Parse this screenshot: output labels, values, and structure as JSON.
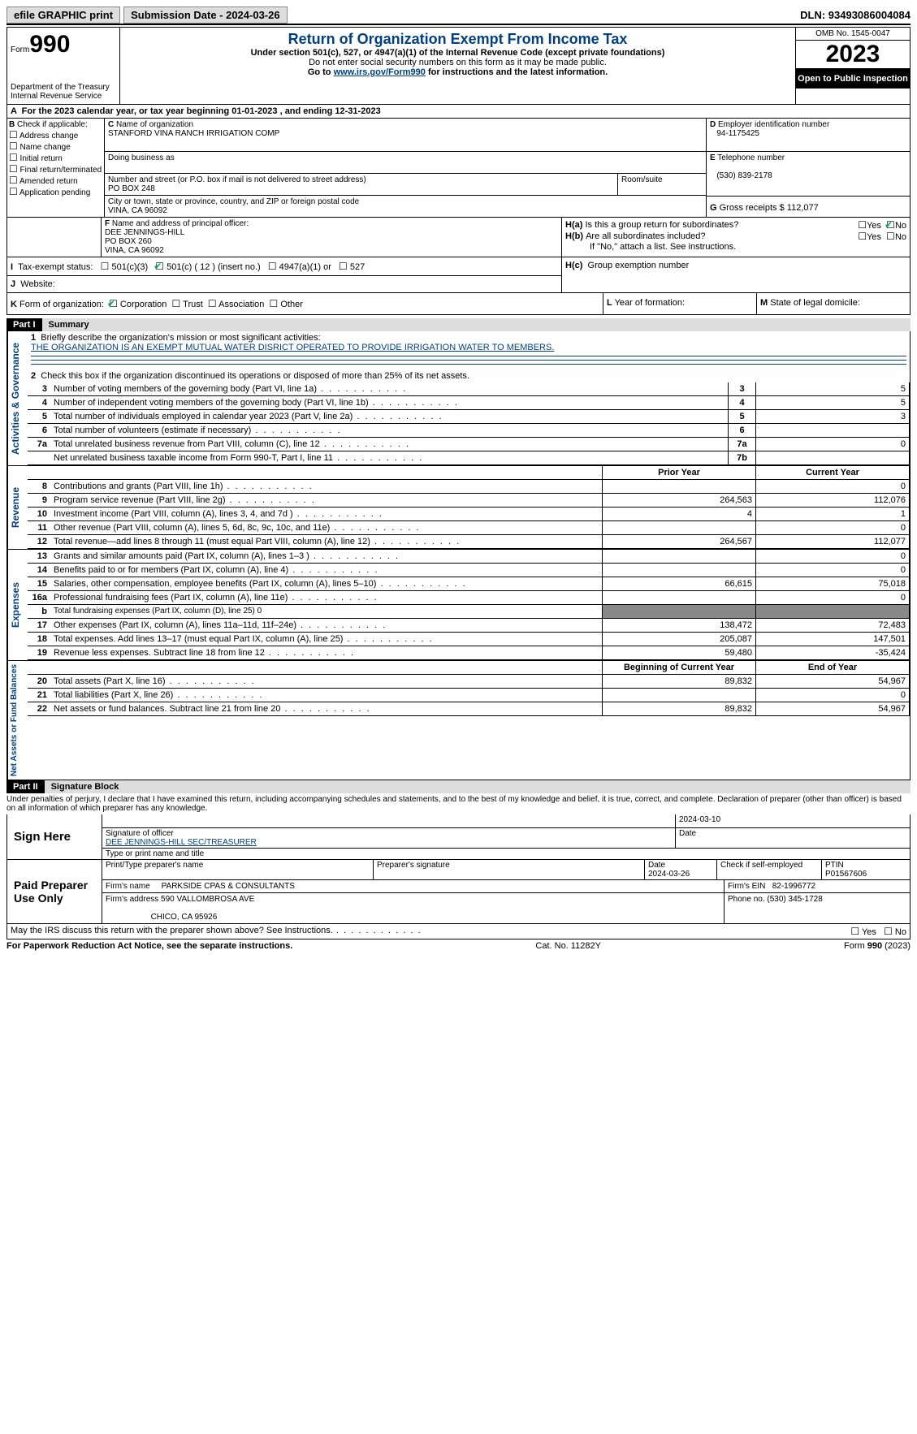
{
  "top": {
    "efile": "efile GRAPHIC print",
    "submission": "Submission Date - 2024-03-26",
    "dln": "DLN: 93493086004084"
  },
  "header": {
    "form_word": "Form",
    "form_num": "990",
    "dept1": "Department of the Treasury",
    "dept2": "Internal Revenue Service",
    "title": "Return of Organization Exempt From Income Tax",
    "sub1": "Under section 501(c), 527, or 4947(a)(1) of the Internal Revenue Code (except private foundations)",
    "sub2": "Do not enter social security numbers on this form as it may be made public.",
    "sub3_pre": "Go to ",
    "sub3_link": "www.irs.gov/Form990",
    "sub3_post": " for instructions and the latest information.",
    "omb": "OMB No. 1545-0047",
    "year": "2023",
    "open": "Open to Public Inspection"
  },
  "a": {
    "text": "For the 2023 calendar year, or tax year beginning 01-01-2023   , and ending 12-31-2023"
  },
  "b": {
    "label": "Check if applicable:",
    "items": [
      "Address change",
      "Name change",
      "Initial return",
      "Final return/terminated",
      "Amended return",
      "Application pending"
    ]
  },
  "c": {
    "name_label": "Name of organization",
    "name": "STANFORD VINA RANCH IRRIGATION COMP",
    "dba_label": "Doing business as",
    "street_label": "Number and street (or P.O. box if mail is not delivered to street address)",
    "street": "PO BOX 248",
    "room_label": "Room/suite",
    "city_label": "City or town, state or province, country, and ZIP or foreign postal code",
    "city": "VINA, CA  96092"
  },
  "d": {
    "label": "Employer identification number",
    "val": "94-1175425"
  },
  "e": {
    "label": "Telephone number",
    "val": "(530) 839-2178"
  },
  "g": {
    "label": "Gross receipts $",
    "val": "112,077"
  },
  "f": {
    "label": "Name and address of principal officer:",
    "l1": "DEE JENNINGS-HILL",
    "l2": "PO BOX 260",
    "l3": "VINA, CA  96092"
  },
  "h": {
    "a_q": "Is this a group return for subordinates?",
    "b_q": "Are all subordinates included?",
    "no_note": "If \"No,\" attach a list. See instructions.",
    "c_q": "Group exemption number"
  },
  "i": {
    "label": "Tax-exempt status:",
    "o1": "501(c)(3)",
    "o2": "501(c) ( 12 ) (insert no.)",
    "o3": "4947(a)(1) or",
    "o4": "527"
  },
  "j": {
    "label": "Website:"
  },
  "k": {
    "label": "Form of organization:",
    "o1": "Corporation",
    "o2": "Trust",
    "o3": "Association",
    "o4": "Other"
  },
  "l": {
    "label": "Year of formation:"
  },
  "m": {
    "label": "State of legal domicile:"
  },
  "part1": {
    "header": "Part I",
    "title": "Summary",
    "line1_label": "Briefly describe the organization's mission or most significant activities:",
    "line1_val": "THE ORGANIZATION IS AN EXEMPT MUTUAL WATER DISRICT OPERATED TO PROVIDE IRRIGATION WATER TO MEMBERS.",
    "line2": "Check this box      if the organization discontinued its operations or disposed of more than 25% of its net assets.",
    "gov_label": "Activities & Governance",
    "rev_label": "Revenue",
    "exp_label": "Expenses",
    "net_label": "Net Assets or Fund Balances",
    "prior": "Prior Year",
    "current": "Current Year",
    "begin": "Beginning of Current Year",
    "end": "End of Year",
    "rows_gov": [
      {
        "n": "3",
        "d": "Number of voting members of the governing body (Part VI, line 1a)",
        "i": "3",
        "v": "5"
      },
      {
        "n": "4",
        "d": "Number of independent voting members of the governing body (Part VI, line 1b)",
        "i": "4",
        "v": "5"
      },
      {
        "n": "5",
        "d": "Total number of individuals employed in calendar year 2023 (Part V, line 2a)",
        "i": "5",
        "v": "3"
      },
      {
        "n": "6",
        "d": "Total number of volunteers (estimate if necessary)",
        "i": "6",
        "v": ""
      },
      {
        "n": "7a",
        "d": "Total unrelated business revenue from Part VIII, column (C), line 12",
        "i": "7a",
        "v": "0"
      },
      {
        "n": "",
        "d": "Net unrelated business taxable income from Form 990-T, Part I, line 11",
        "i": "7b",
        "v": ""
      }
    ],
    "rows_rev": [
      {
        "n": "8",
        "d": "Contributions and grants (Part VIII, line 1h)",
        "p": "",
        "c": "0"
      },
      {
        "n": "9",
        "d": "Program service revenue (Part VIII, line 2g)",
        "p": "264,563",
        "c": "112,076"
      },
      {
        "n": "10",
        "d": "Investment income (Part VIII, column (A), lines 3, 4, and 7d )",
        "p": "4",
        "c": "1"
      },
      {
        "n": "11",
        "d": "Other revenue (Part VIII, column (A), lines 5, 6d, 8c, 9c, 10c, and 11e)",
        "p": "",
        "c": "0"
      },
      {
        "n": "12",
        "d": "Total revenue—add lines 8 through 11 (must equal Part VIII, column (A), line 12)",
        "p": "264,567",
        "c": "112,077"
      }
    ],
    "rows_exp": [
      {
        "n": "13",
        "d": "Grants and similar amounts paid (Part IX, column (A), lines 1–3 )",
        "p": "",
        "c": "0"
      },
      {
        "n": "14",
        "d": "Benefits paid to or for members (Part IX, column (A), line 4)",
        "p": "",
        "c": "0"
      },
      {
        "n": "15",
        "d": "Salaries, other compensation, employee benefits (Part IX, column (A), lines 5–10)",
        "p": "66,615",
        "c": "75,018"
      },
      {
        "n": "16a",
        "d": "Professional fundraising fees (Part IX, column (A), line 11e)",
        "p": "",
        "c": "0"
      },
      {
        "n": "b",
        "d": "Total fundraising expenses (Part IX, column (D), line 25) 0",
        "grey": true
      },
      {
        "n": "17",
        "d": "Other expenses (Part IX, column (A), lines 11a–11d, 11f–24e)",
        "p": "138,472",
        "c": "72,483"
      },
      {
        "n": "18",
        "d": "Total expenses. Add lines 13–17 (must equal Part IX, column (A), line 25)",
        "p": "205,087",
        "c": "147,501"
      },
      {
        "n": "19",
        "d": "Revenue less expenses. Subtract line 18 from line 12",
        "p": "59,480",
        "c": "-35,424"
      }
    ],
    "rows_net": [
      {
        "n": "20",
        "d": "Total assets (Part X, line 16)",
        "p": "89,832",
        "c": "54,967"
      },
      {
        "n": "21",
        "d": "Total liabilities (Part X, line 26)",
        "p": "",
        "c": "0"
      },
      {
        "n": "22",
        "d": "Net assets or fund balances. Subtract line 21 from line 20",
        "p": "89,832",
        "c": "54,967"
      }
    ]
  },
  "part2": {
    "header": "Part II",
    "title": "Signature Block",
    "perjury": "Under penalties of perjury, I declare that I have examined this return, including accompanying schedules and statements, and to the best of my knowledge and belief, it is true, correct, and complete. Declaration of preparer (other than officer) is based on all information of which preparer has any knowledge.",
    "sign_here": "Sign Here",
    "sig_date": "2024-03-10",
    "sig_label": "Signature of officer",
    "date_label": "Date",
    "officer": "DEE JENNINGS-HILL  SEC/TREASURER",
    "officer_label": "Type or print name and title",
    "paid": "Paid Preparer Use Only",
    "prep_name_label": "Print/Type preparer's name",
    "prep_sig_label": "Preparer's signature",
    "prep_date_label": "Date",
    "prep_date": "2024-03-26",
    "check_self": "Check       if self-employed",
    "ptin_label": "PTIN",
    "ptin": "P01567606",
    "firm_name_label": "Firm's name",
    "firm_name": "PARKSIDE CPAS & CONSULTANTS",
    "firm_ein_label": "Firm's EIN",
    "firm_ein": "82-1996772",
    "firm_addr_label": "Firm's address",
    "firm_addr1": "590 VALLOMBROSA AVE",
    "firm_addr2": "CHICO, CA  95926",
    "phone_label": "Phone no.",
    "phone": "(530) 345-1728",
    "discuss": "May the IRS discuss this return with the preparer shown above? See Instructions."
  },
  "footer": {
    "l": "For Paperwork Reduction Act Notice, see the separate instructions.",
    "c": "Cat. No. 11282Y",
    "r": "Form 990 (2023)"
  }
}
